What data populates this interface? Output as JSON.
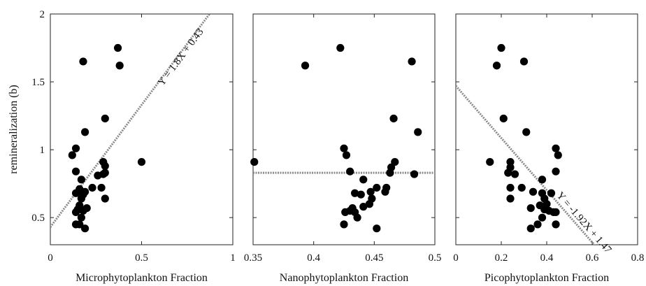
{
  "chart_data": [
    {
      "type": "scatter",
      "xlabel": "Microphytoplankton Fraction",
      "ylabel": "remineralization (b)",
      "xlim": [
        0,
        1
      ],
      "ylim": [
        0.3,
        2
      ],
      "xticks": [
        "0",
        "0.5",
        "1"
      ],
      "yticks": [
        "0.5",
        "1",
        "1.5",
        "2"
      ],
      "fit": {
        "slope": 1.8,
        "intercept": 0.43,
        "label": "Y = 1.8X + 0.43"
      },
      "points": [
        [
          0.37,
          1.75
        ],
        [
          0.38,
          1.62
        ],
        [
          0.18,
          1.65
        ],
        [
          0.3,
          1.23
        ],
        [
          0.19,
          1.13
        ],
        [
          0.14,
          1.01
        ],
        [
          0.12,
          0.96
        ],
        [
          0.14,
          0.84
        ],
        [
          0.17,
          0.78
        ],
        [
          0.5,
          0.91
        ],
        [
          0.29,
          0.91
        ],
        [
          0.3,
          0.88
        ],
        [
          0.3,
          0.83
        ],
        [
          0.29,
          0.82
        ],
        [
          0.26,
          0.81
        ],
        [
          0.28,
          0.72
        ],
        [
          0.23,
          0.72
        ],
        [
          0.16,
          0.71
        ],
        [
          0.19,
          0.69
        ],
        [
          0.14,
          0.68
        ],
        [
          0.18,
          0.67
        ],
        [
          0.17,
          0.64
        ],
        [
          0.3,
          0.64
        ],
        [
          0.16,
          0.59
        ],
        [
          0.2,
          0.57
        ],
        [
          0.15,
          0.56
        ],
        [
          0.14,
          0.54
        ],
        [
          0.18,
          0.55
        ],
        [
          0.17,
          0.5
        ],
        [
          0.16,
          0.45
        ],
        [
          0.14,
          0.45
        ],
        [
          0.19,
          0.42
        ]
      ]
    },
    {
      "type": "scatter",
      "xlabel": "Nanophytoplankton Fraction",
      "xlim": [
        0.35,
        0.5
      ],
      "ylim": [
        0.3,
        2
      ],
      "xticks": [
        "0.35",
        "0.4",
        "0.45",
        "0.5"
      ],
      "fit": {
        "slope": 0.0,
        "intercept": 0.83,
        "label": ""
      },
      "points": [
        [
          0.422,
          1.75
        ],
        [
          0.393,
          1.62
        ],
        [
          0.481,
          1.65
        ],
        [
          0.466,
          1.23
        ],
        [
          0.486,
          1.13
        ],
        [
          0.425,
          1.01
        ],
        [
          0.427,
          0.96
        ],
        [
          0.351,
          0.91
        ],
        [
          0.467,
          0.91
        ],
        [
          0.464,
          0.87
        ],
        [
          0.43,
          0.84
        ],
        [
          0.463,
          0.83
        ],
        [
          0.483,
          0.82
        ],
        [
          0.441,
          0.78
        ],
        [
          0.452,
          0.72
        ],
        [
          0.46,
          0.72
        ],
        [
          0.447,
          0.69
        ],
        [
          0.459,
          0.69
        ],
        [
          0.434,
          0.68
        ],
        [
          0.439,
          0.67
        ],
        [
          0.448,
          0.64
        ],
        [
          0.446,
          0.6
        ],
        [
          0.441,
          0.58
        ],
        [
          0.432,
          0.57
        ],
        [
          0.426,
          0.54
        ],
        [
          0.434,
          0.54
        ],
        [
          0.43,
          0.55
        ],
        [
          0.436,
          0.5
        ],
        [
          0.425,
          0.45
        ],
        [
          0.452,
          0.42
        ]
      ]
    },
    {
      "type": "scatter",
      "xlabel": "Picophytoplankton Fraction",
      "xlim": [
        0,
        0.8
      ],
      "ylim": [
        0.3,
        2
      ],
      "xticks": [
        "0",
        "0.2",
        "0.4",
        "0.6",
        "0.8"
      ],
      "fit": {
        "slope": -1.92,
        "intercept": 1.47,
        "label": "Y = -1.92X + 1.47"
      },
      "points": [
        [
          0.2,
          1.75
        ],
        [
          0.18,
          1.62
        ],
        [
          0.3,
          1.65
        ],
        [
          0.21,
          1.23
        ],
        [
          0.31,
          1.13
        ],
        [
          0.44,
          1.01
        ],
        [
          0.45,
          0.96
        ],
        [
          0.15,
          0.91
        ],
        [
          0.24,
          0.91
        ],
        [
          0.24,
          0.87
        ],
        [
          0.44,
          0.84
        ],
        [
          0.23,
          0.83
        ],
        [
          0.26,
          0.82
        ],
        [
          0.38,
          0.78
        ],
        [
          0.29,
          0.72
        ],
        [
          0.24,
          0.72
        ],
        [
          0.34,
          0.69
        ],
        [
          0.42,
          0.68
        ],
        [
          0.38,
          0.68
        ],
        [
          0.39,
          0.64
        ],
        [
          0.24,
          0.64
        ],
        [
          0.4,
          0.6
        ],
        [
          0.37,
          0.59
        ],
        [
          0.33,
          0.57
        ],
        [
          0.39,
          0.56
        ],
        [
          0.41,
          0.55
        ],
        [
          0.43,
          0.54
        ],
        [
          0.44,
          0.54
        ],
        [
          0.38,
          0.5
        ],
        [
          0.36,
          0.45
        ],
        [
          0.44,
          0.45
        ],
        [
          0.33,
          0.42
        ]
      ]
    }
  ]
}
